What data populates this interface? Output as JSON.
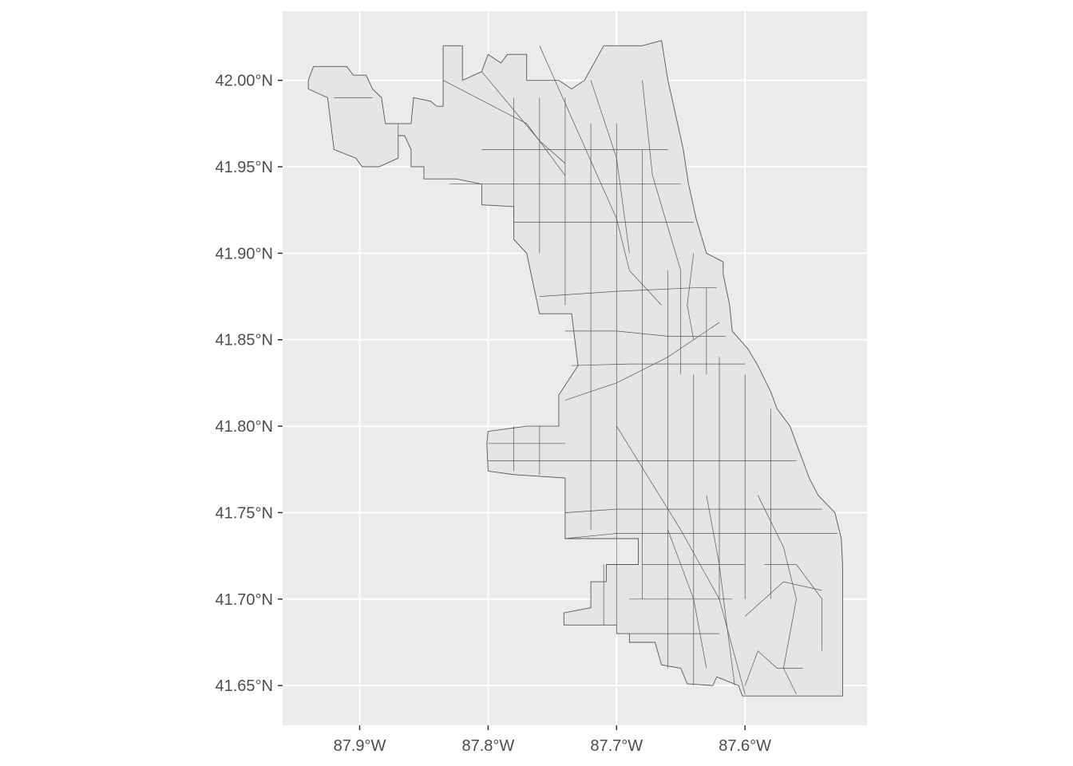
{
  "plot": {
    "panel_background": "#ebebeb",
    "grid_color": "#ffffff",
    "polygon_fill": "#e5e5e5",
    "polygon_stroke": "#555555",
    "label_color": "#4d4d4d"
  },
  "axes": {
    "x": {
      "ticks": [
        -87.9,
        -87.8,
        -87.7,
        -87.6
      ],
      "labels": [
        "87.9°W",
        "87.8°W",
        "87.7°W",
        "87.6°W"
      ],
      "range": [
        -87.96,
        -87.505
      ]
    },
    "y": {
      "ticks": [
        42.0,
        41.95,
        41.9,
        41.85,
        41.8,
        41.75,
        41.7,
        41.65
      ],
      "labels": [
        "42.00°N",
        "41.95°N",
        "41.90°N",
        "41.85°N",
        "41.80°N",
        "41.75°N",
        "41.70°N",
        "41.65°N"
      ],
      "range": [
        41.627,
        42.04
      ]
    }
  },
  "map_data": {
    "type": "choropleth-outline",
    "region": "Chicago census tracts",
    "outline": [
      [
        -87.94,
        42.0
      ],
      [
        -87.936,
        42.008
      ],
      [
        -87.91,
        42.008
      ],
      [
        -87.905,
        42.003
      ],
      [
        -87.895,
        42.003
      ],
      [
        -87.89,
        41.995
      ],
      [
        -87.883,
        41.99
      ],
      [
        -87.88,
        41.975
      ],
      [
        -87.87,
        41.975
      ],
      [
        -87.86,
        41.975
      ],
      [
        -87.858,
        41.99
      ],
      [
        -87.845,
        41.988
      ],
      [
        -87.84,
        41.985
      ],
      [
        -87.835,
        41.985
      ],
      [
        -87.835,
        42.02
      ],
      [
        -87.82,
        42.02
      ],
      [
        -87.82,
        42.0
      ],
      [
        -87.805,
        42.005
      ],
      [
        -87.8,
        42.015
      ],
      [
        -87.79,
        42.01
      ],
      [
        -87.785,
        42.015
      ],
      [
        -87.77,
        42.015
      ],
      [
        -87.77,
        42.0
      ],
      [
        -87.745,
        42.0
      ],
      [
        -87.735,
        41.995
      ],
      [
        -87.725,
        42.0
      ],
      [
        -87.71,
        42.02
      ],
      [
        -87.68,
        42.02
      ],
      [
        -87.665,
        42.023
      ],
      [
        -87.66,
        42.0
      ],
      [
        -87.654,
        41.98
      ],
      [
        -87.648,
        41.96
      ],
      [
        -87.644,
        41.94
      ],
      [
        -87.638,
        41.92
      ],
      [
        -87.63,
        41.9
      ],
      [
        -87.617,
        41.895
      ],
      [
        -87.617,
        41.888
      ],
      [
        -87.612,
        41.87
      ],
      [
        -87.61,
        41.855
      ],
      [
        -87.598,
        41.845
      ],
      [
        -87.59,
        41.835
      ],
      [
        -87.58,
        41.82
      ],
      [
        -87.575,
        41.81
      ],
      [
        -87.565,
        41.8
      ],
      [
        -87.56,
        41.79
      ],
      [
        -87.555,
        41.78
      ],
      [
        -87.55,
        41.77
      ],
      [
        -87.543,
        41.76
      ],
      [
        -87.53,
        41.75
      ],
      [
        -87.525,
        41.735
      ],
      [
        -87.524,
        41.72
      ],
      [
        -87.524,
        41.7
      ],
      [
        -87.524,
        41.644
      ],
      [
        -87.602,
        41.644
      ],
      [
        -87.605,
        41.65
      ],
      [
        -87.622,
        41.655
      ],
      [
        -87.625,
        41.65
      ],
      [
        -87.645,
        41.651
      ],
      [
        -87.65,
        41.66
      ],
      [
        -87.665,
        41.662
      ],
      [
        -87.67,
        41.675
      ],
      [
        -87.69,
        41.675
      ],
      [
        -87.69,
        41.68
      ],
      [
        -87.7,
        41.68
      ],
      [
        -87.7,
        41.685
      ],
      [
        -87.741,
        41.685
      ],
      [
        -87.741,
        41.692
      ],
      [
        -87.72,
        41.695
      ],
      [
        -87.72,
        41.71
      ],
      [
        -87.708,
        41.71
      ],
      [
        -87.708,
        41.72
      ],
      [
        -87.683,
        41.72
      ],
      [
        -87.683,
        41.735
      ],
      [
        -87.74,
        41.735
      ],
      [
        -87.74,
        41.77
      ],
      [
        -87.78,
        41.772
      ],
      [
        -87.8,
        41.774
      ],
      [
        -87.801,
        41.79
      ],
      [
        -87.8,
        41.797
      ],
      [
        -87.77,
        41.8
      ],
      [
        -87.745,
        41.8
      ],
      [
        -87.745,
        41.818
      ],
      [
        -87.73,
        41.835
      ],
      [
        -87.735,
        41.865
      ],
      [
        -87.76,
        41.865
      ],
      [
        -87.77,
        41.9
      ],
      [
        -87.78,
        41.908
      ],
      [
        -87.78,
        41.927
      ],
      [
        -87.805,
        41.928
      ],
      [
        -87.805,
        41.94
      ],
      [
        -87.825,
        41.943
      ],
      [
        -87.85,
        41.943
      ],
      [
        -87.85,
        41.95
      ],
      [
        -87.86,
        41.95
      ],
      [
        -87.86,
        41.96
      ],
      [
        -87.865,
        41.968
      ],
      [
        -87.87,
        41.968
      ],
      [
        -87.87,
        41.955
      ],
      [
        -87.885,
        41.95
      ],
      [
        -87.898,
        41.95
      ],
      [
        -87.903,
        41.955
      ],
      [
        -87.92,
        41.96
      ],
      [
        -87.925,
        41.99
      ],
      [
        -87.94,
        41.995
      ],
      [
        -87.94,
        42.0
      ]
    ],
    "interior_lines": [
      [
        [
          -87.92,
          41.99
        ],
        [
          -87.89,
          41.99
        ]
      ],
      [
        [
          -87.88,
          41.975
        ],
        [
          -87.87,
          41.975
        ],
        [
          -87.87,
          41.968
        ]
      ],
      [
        [
          -87.835,
          42.0
        ],
        [
          -87.77,
          41.975
        ],
        [
          -87.74,
          41.945
        ]
      ],
      [
        [
          -87.805,
          42.005
        ],
        [
          -87.76,
          41.965
        ],
        [
          -87.74,
          41.952
        ]
      ],
      [
        [
          -87.76,
          42.02
        ],
        [
          -87.7,
          41.92
        ],
        [
          -87.69,
          41.89
        ],
        [
          -87.665,
          41.87
        ]
      ],
      [
        [
          -87.72,
          42.0
        ],
        [
          -87.7,
          41.955
        ],
        [
          -87.69,
          41.9
        ]
      ],
      [
        [
          -87.68,
          42.0
        ],
        [
          -87.672,
          41.945
        ],
        [
          -87.66,
          41.915
        ],
        [
          -87.65,
          41.89
        ]
      ],
      [
        [
          -87.64,
          41.9
        ],
        [
          -87.645,
          41.87
        ],
        [
          -87.64,
          41.85
        ]
      ],
      [
        [
          -87.74,
          41.815
        ],
        [
          -87.7,
          41.825
        ],
        [
          -87.66,
          41.84
        ],
        [
          -87.62,
          41.86
        ]
      ],
      [
        [
          -87.7,
          41.8
        ],
        [
          -87.65,
          41.74
        ],
        [
          -87.62,
          41.7
        ],
        [
          -87.6,
          41.645
        ]
      ],
      [
        [
          -87.63,
          41.76
        ],
        [
          -87.62,
          41.72
        ],
        [
          -87.615,
          41.69
        ],
        [
          -87.608,
          41.65
        ]
      ],
      [
        [
          -87.59,
          41.76
        ],
        [
          -87.57,
          41.73
        ],
        [
          -87.56,
          41.7
        ]
      ],
      [
        [
          -87.66,
          41.74
        ],
        [
          -87.64,
          41.7
        ],
        [
          -87.63,
          41.66
        ]
      ],
      [
        [
          -87.585,
          41.72
        ],
        [
          -87.56,
          41.72
        ],
        [
          -87.54,
          41.7
        ],
        [
          -87.54,
          41.67
        ]
      ],
      [
        [
          -87.6,
          41.69
        ],
        [
          -87.57,
          41.71
        ],
        [
          -87.54,
          41.705
        ]
      ],
      [
        [
          -87.6,
          41.65
        ],
        [
          -87.59,
          41.67
        ],
        [
          -87.575,
          41.66
        ],
        [
          -87.555,
          41.66
        ]
      ],
      [
        [
          -87.56,
          41.7
        ],
        [
          -87.57,
          41.66
        ],
        [
          -87.56,
          41.645
        ]
      ],
      [
        [
          -87.805,
          41.96
        ],
        [
          -87.78,
          41.96
        ],
        [
          -87.74,
          41.96
        ],
        [
          -87.7,
          41.96
        ],
        [
          -87.66,
          41.96
        ]
      ],
      [
        [
          -87.83,
          41.94
        ],
        [
          -87.74,
          41.94
        ],
        [
          -87.65,
          41.94
        ]
      ],
      [
        [
          -87.78,
          41.918
        ],
        [
          -87.74,
          41.918
        ],
        [
          -87.7,
          41.918
        ],
        [
          -87.64,
          41.918
        ]
      ],
      [
        [
          -87.76,
          41.875
        ],
        [
          -87.7,
          41.878
        ],
        [
          -87.64,
          41.88
        ],
        [
          -87.622,
          41.88
        ]
      ],
      [
        [
          -87.74,
          41.855
        ],
        [
          -87.7,
          41.855
        ],
        [
          -87.66,
          41.852
        ],
        [
          -87.615,
          41.852
        ]
      ],
      [
        [
          -87.735,
          41.835
        ],
        [
          -87.69,
          41.836
        ],
        [
          -87.64,
          41.836
        ],
        [
          -87.6,
          41.836
        ]
      ],
      [
        [
          -87.8,
          41.78
        ],
        [
          -87.76,
          41.78
        ],
        [
          -87.7,
          41.78
        ],
        [
          -87.65,
          41.78
        ],
        [
          -87.56,
          41.78
        ]
      ],
      [
        [
          -87.74,
          41.75
        ],
        [
          -87.7,
          41.752
        ],
        [
          -87.64,
          41.752
        ],
        [
          -87.54,
          41.752
        ]
      ],
      [
        [
          -87.74,
          41.735
        ],
        [
          -87.7,
          41.738
        ],
        [
          -87.64,
          41.738
        ],
        [
          -87.58,
          41.738
        ],
        [
          -87.528,
          41.738
        ]
      ],
      [
        [
          -87.68,
          41.72
        ],
        [
          -87.64,
          41.72
        ],
        [
          -87.6,
          41.72
        ]
      ],
      [
        [
          -87.69,
          41.7
        ],
        [
          -87.65,
          41.7
        ],
        [
          -87.61,
          41.7
        ]
      ],
      [
        [
          -87.69,
          41.68
        ],
        [
          -87.65,
          41.68
        ],
        [
          -87.62,
          41.68
        ]
      ],
      [
        [
          -87.78,
          41.99
        ],
        [
          -87.78,
          41.92
        ]
      ],
      [
        [
          -87.76,
          41.99
        ],
        [
          -87.76,
          41.9
        ]
      ],
      [
        [
          -87.74,
          41.99
        ],
        [
          -87.74,
          41.87
        ]
      ],
      [
        [
          -87.72,
          41.975
        ],
        [
          -87.72,
          41.84
        ],
        [
          -87.72,
          41.74
        ]
      ],
      [
        [
          -87.7,
          41.975
        ],
        [
          -87.7,
          41.685
        ]
      ],
      [
        [
          -87.68,
          41.96
        ],
        [
          -87.68,
          41.7
        ]
      ],
      [
        [
          -87.66,
          41.89
        ],
        [
          -87.66,
          41.66
        ]
      ],
      [
        [
          -87.64,
          41.83
        ],
        [
          -87.64,
          41.65
        ]
      ],
      [
        [
          -87.62,
          41.84
        ],
        [
          -87.62,
          41.7
        ]
      ],
      [
        [
          -87.6,
          41.83
        ],
        [
          -87.6,
          41.7
        ]
      ],
      [
        [
          -87.58,
          41.81
        ],
        [
          -87.58,
          41.7
        ]
      ],
      [
        [
          -87.8,
          41.79
        ],
        [
          -87.74,
          41.79
        ]
      ],
      [
        [
          -87.78,
          41.8
        ],
        [
          -87.78,
          41.774
        ]
      ],
      [
        [
          -87.76,
          41.8
        ],
        [
          -87.76,
          41.772
        ]
      ],
      [
        [
          -87.71,
          41.72
        ],
        [
          -87.71,
          41.685
        ]
      ],
      [
        [
          -87.65,
          41.89
        ],
        [
          -87.65,
          41.83
        ]
      ],
      [
        [
          -87.63,
          41.88
        ],
        [
          -87.63,
          41.83
        ]
      ]
    ]
  }
}
